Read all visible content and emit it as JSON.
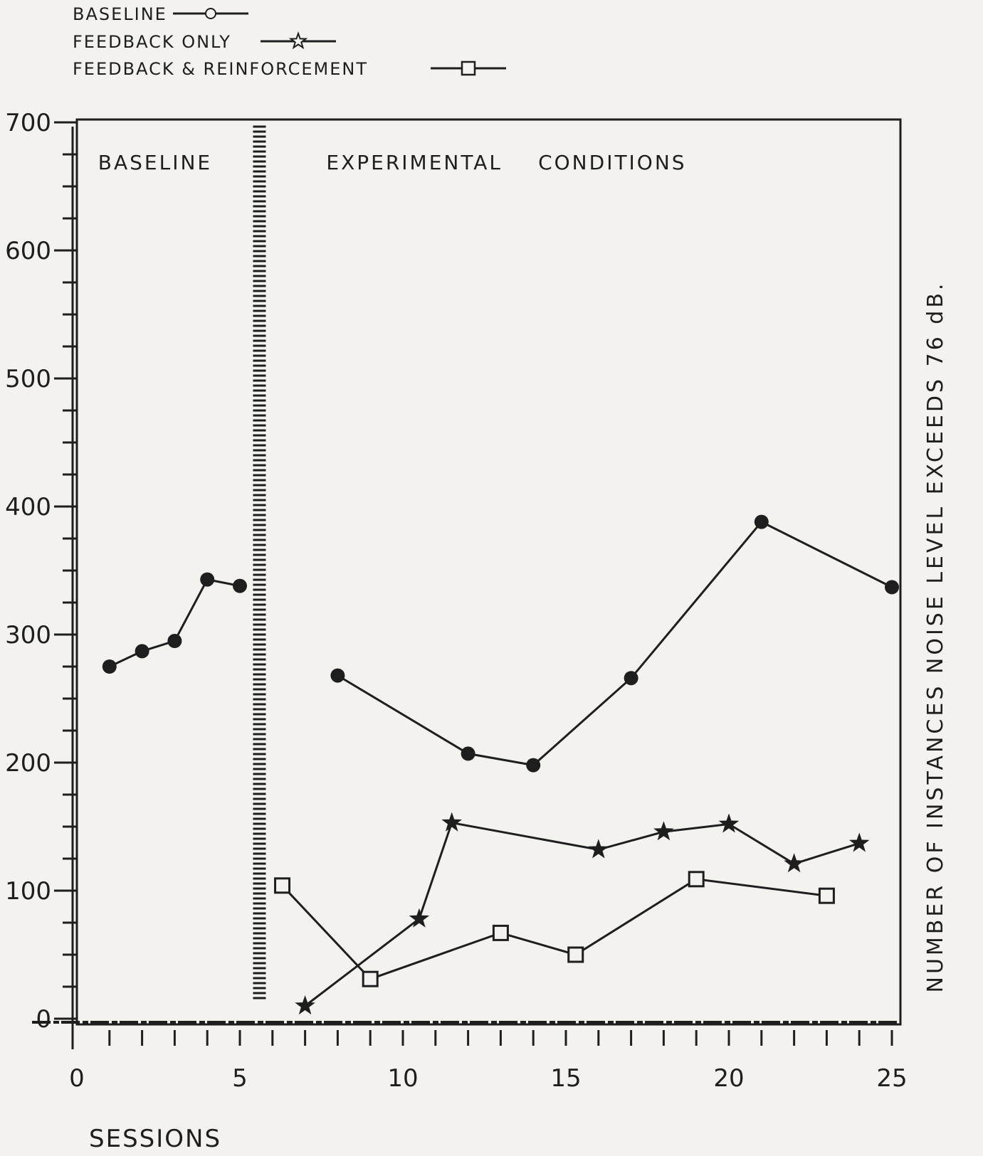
{
  "chart_data": {
    "type": "line",
    "title": "",
    "xlabel": "SESSIONS",
    "ylabel": "NUMBER OF INSTANCES NOISE LEVEL EXCEEDS 76 dB.",
    "xlim": [
      0,
      25.5
    ],
    "ylim": [
      0,
      700
    ],
    "x_ticks": [
      0,
      5,
      10,
      15,
      20,
      25
    ],
    "x_tick_labels": [
      "0",
      "5",
      "10",
      "15",
      "20",
      "25"
    ],
    "y_ticks": [
      0,
      100,
      200,
      300,
      400,
      500,
      600,
      700
    ],
    "y_tick_labels": [
      "0",
      "100",
      "200",
      "300",
      "400",
      "500",
      "600",
      "700"
    ],
    "grid": false,
    "legend": {
      "placement": "top-left",
      "entries": [
        {
          "label": "BASELINE",
          "marker": "circle"
        },
        {
          "label": "FEEDBACK ONLY",
          "marker": "star-open"
        },
        {
          "label": "FEEDBACK & REINFORCEMENT",
          "marker": "square"
        }
      ]
    },
    "phase_divider_x": 5.6,
    "phase_labels": [
      {
        "text": "BASELINE",
        "x": 1.0
      },
      {
        "text": "EXPERIMENTAL",
        "x": 8.0
      },
      {
        "text": "CONDITIONS",
        "x": 14.5
      }
    ],
    "series": [
      {
        "marker": "circle",
        "segments": [
          [
            [
              1,
              275
            ],
            [
              2,
              287
            ],
            [
              3,
              295
            ],
            [
              4,
              343
            ],
            [
              5,
              338
            ]
          ],
          [
            [
              8,
              268
            ],
            [
              12,
              207
            ],
            [
              14,
              198
            ],
            [
              17,
              266
            ],
            [
              21,
              388
            ],
            [
              25,
              337
            ]
          ]
        ]
      },
      {
        "marker": "star",
        "segments": [
          [
            [
              7,
              10
            ],
            [
              10.5,
              78
            ],
            [
              11.5,
              153
            ],
            [
              16,
              132
            ],
            [
              18,
              146
            ],
            [
              20,
              152
            ],
            [
              22,
              121
            ],
            [
              24,
              137
            ]
          ]
        ]
      },
      {
        "marker": "square",
        "segments": [
          [
            [
              6.3,
              104
            ],
            [
              9,
              31
            ],
            [
              13,
              67
            ],
            [
              15.3,
              50
            ],
            [
              19,
              109
            ],
            [
              23,
              96
            ]
          ]
        ]
      }
    ],
    "colors": {
      "ink": "#1e1e1e",
      "paper": "#f3f2ef"
    }
  }
}
